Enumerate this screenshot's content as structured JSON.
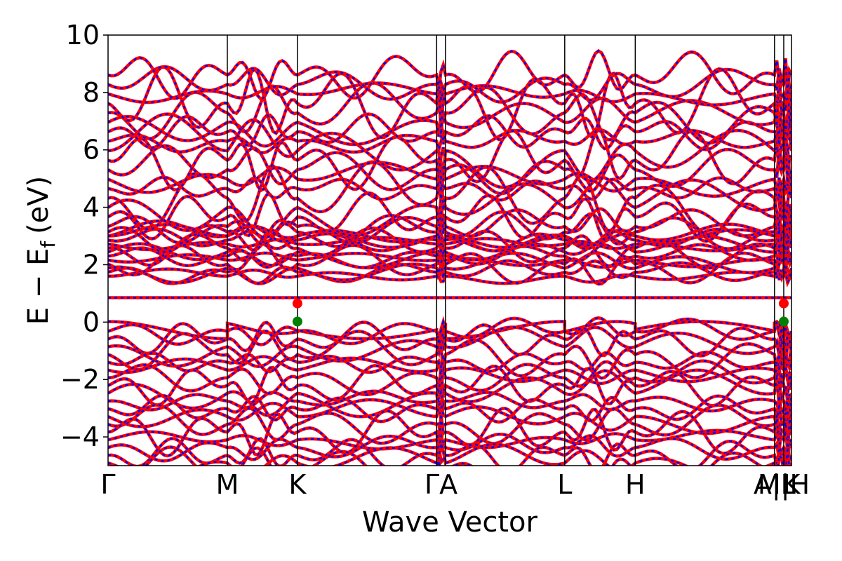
{
  "chart_data": {
    "type": "line",
    "title": "",
    "xlabel": "Wave Vector",
    "ylabel_main": "E − E",
    "ylabel_sub": "f",
    "ylabel_unit": "(eV)",
    "ylim": [
      -5,
      10
    ],
    "yticks": [
      {
        "value": -4,
        "label": "−4"
      },
      {
        "value": -2,
        "label": "−2"
      },
      {
        "value": 0,
        "label": "0"
      },
      {
        "value": 2,
        "label": "2"
      },
      {
        "value": 4,
        "label": "4"
      },
      {
        "value": 6,
        "label": "6"
      },
      {
        "value": 8,
        "label": "8"
      },
      {
        "value": 10,
        "label": "10"
      }
    ],
    "kpoints": [
      {
        "label": "Γ",
        "k": 0.0
      },
      {
        "label": "M",
        "k": 0.1745
      },
      {
        "label": "K",
        "k": 0.2771
      },
      {
        "label": "Γ",
        "k": 0.4808
      },
      {
        "label": "A",
        "k": 0.4937
      },
      {
        "label": "L",
        "k": 0.6682
      },
      {
        "label": "H",
        "k": 0.7714
      },
      {
        "label": "A|L",
        "k": 0.9752
      },
      {
        "label": "M|H",
        "k": 0.9887
      },
      {
        "label": "K",
        "k": 1.0
      }
    ],
    "xtick_texts": [
      {
        "text": "Γ",
        "k": 0.0
      },
      {
        "text": "M",
        "k": 0.1745
      },
      {
        "text": "K",
        "k": 0.2771
      },
      {
        "text": "ΓA",
        "k": 0.4872
      },
      {
        "text": "L",
        "k": 0.6682
      },
      {
        "text": "H",
        "k": 0.7714
      },
      {
        "text": "A|L",
        "k": 0.9752
      },
      {
        "text": "M|H",
        "k": 0.9887
      },
      {
        "text": "K",
        "k": 1.0
      }
    ],
    "series_colors": {
      "dft": "#ff0000",
      "wannier": "#0000ff"
    },
    "flat_band_energy": 0.85,
    "cbm": {
      "k": 0.2771,
      "energy": 0.65,
      "color": "#ff0000"
    },
    "vbm": {
      "k": 0.2771,
      "energy": 0.02,
      "color": "#008000"
    },
    "cbm_end": {
      "k": 0.9887,
      "energy": 0.65,
      "color": "#ff0000"
    },
    "vbm_end": {
      "k": 0.9887,
      "energy": 0.02,
      "color": "#008000"
    }
  }
}
